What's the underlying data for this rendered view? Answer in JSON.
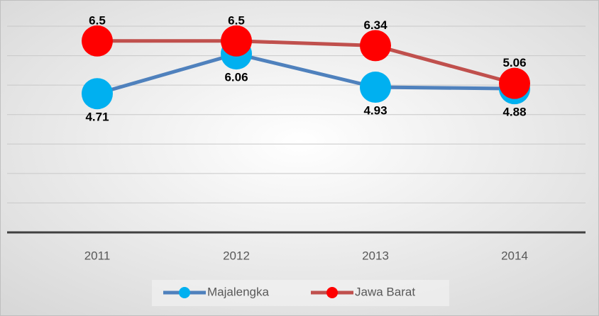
{
  "chart_data": {
    "type": "line",
    "categories": [
      "2011",
      "2012",
      "2013",
      "2014"
    ],
    "series": [
      {
        "name": "Majalengka",
        "color": "#4f81bd",
        "marker_color": "#00b0f0",
        "values": [
          4.71,
          6.06,
          4.93,
          4.88
        ],
        "label_position": "below"
      },
      {
        "name": "Jawa Barat",
        "color": "#c0504d",
        "marker_color": "#ff0000",
        "values": [
          6.5,
          6.5,
          6.34,
          5.06
        ],
        "label_position": "above"
      }
    ],
    "ylim": [
      0,
      7
    ],
    "yticks": [
      0,
      1,
      2,
      3,
      4,
      5,
      6,
      7
    ],
    "grid": true,
    "legend": "bottom"
  }
}
